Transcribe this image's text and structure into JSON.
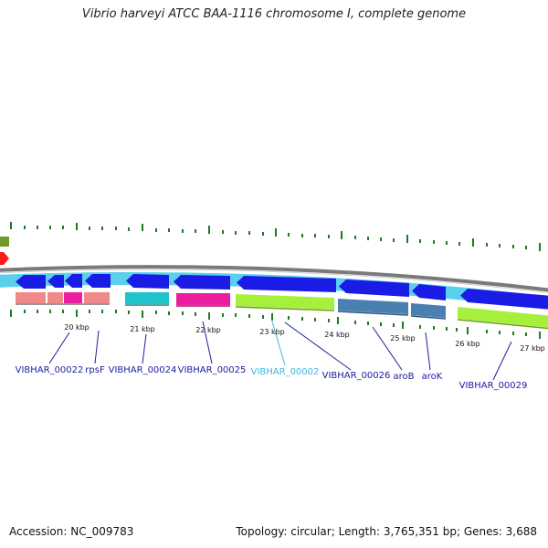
{
  "title": "Vibrio harveyi ATCC BAA-1116 chromosome I, complete genome",
  "accession": {
    "label": "Accession:",
    "value": "NC_009783"
  },
  "summary": {
    "topology_label": "Topology:",
    "topology": "circular",
    "length_label": "Length:",
    "length": "3,765,351 bp",
    "genes_label": "Genes:",
    "genes": "3,688"
  },
  "colors": {
    "backbone": "#7a7a7a",
    "forward_band": "#5ad0ee",
    "cds": "#1b1be6",
    "pink_rna": "#f08a8a",
    "magenta": "#ec1ea0",
    "cyan": "#1fc3cc",
    "lime": "#a6f03c",
    "steel": "#4a7fb2",
    "tick": "#1f7a1f",
    "gene_label": "#1b1ba0",
    "highlight_label": "#3fb8e0"
  },
  "scale_ticks": [
    {
      "label": "20 kbp"
    },
    {
      "label": "21 kbp"
    },
    {
      "label": "22 kbp"
    },
    {
      "label": "23 kbp"
    },
    {
      "label": "24 kbp"
    },
    {
      "label": "25 kbp"
    },
    {
      "label": "26 kbp"
    },
    {
      "label": "27 kbp"
    }
  ],
  "gene_labels": [
    {
      "text": "VIBHAR_00022",
      "color": "gene_label"
    },
    {
      "text": "rpsF",
      "color": "gene_label"
    },
    {
      "text": "VIBHAR_00024",
      "color": "gene_label"
    },
    {
      "text": "VIBHAR_00025",
      "color": "gene_label"
    },
    {
      "text": "VIBHAR_00002",
      "color": "highlight_label"
    },
    {
      "text": "VIBHAR_00026",
      "color": "gene_label"
    },
    {
      "text": "aroB",
      "color": "gene_label"
    },
    {
      "text": "aroK",
      "color": "gene_label"
    },
    {
      "text": "VIBHAR_00029",
      "color": "gene_label"
    }
  ]
}
